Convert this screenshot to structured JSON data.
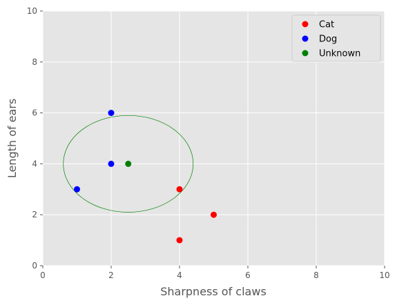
{
  "chart_data": {
    "type": "scatter",
    "title": "",
    "xlabel": "Sharpness of claws",
    "ylabel": "Length of ears",
    "xlim": [
      0,
      10
    ],
    "ylim": [
      0,
      10
    ],
    "xticks": [
      "0",
      "2",
      "4",
      "6",
      "8",
      "10"
    ],
    "yticks": [
      "0",
      "2",
      "4",
      "6",
      "8",
      "10"
    ],
    "grid": true,
    "legend_position": "top-right",
    "series": [
      {
        "name": "Cat",
        "color": "#ff0000",
        "x": [
          4,
          5,
          4
        ],
        "y": [
          3,
          2,
          1
        ]
      },
      {
        "name": "Dog",
        "color": "#0000ff",
        "x": [
          2,
          2,
          1
        ],
        "y": [
          6,
          4,
          3
        ]
      },
      {
        "name": "Unknown",
        "color": "#008000",
        "x": [
          2.5
        ],
        "y": [
          4
        ]
      }
    ],
    "annotations": [
      {
        "type": "ellipse",
        "color": "#008000",
        "cx": 2.5,
        "cy": 4,
        "rx": 1.9,
        "ry": 1.9
      }
    ]
  }
}
